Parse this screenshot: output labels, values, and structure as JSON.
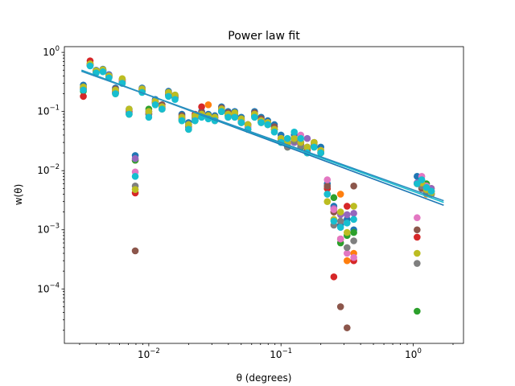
{
  "chart_data": {
    "type": "scatter",
    "title": "Power law fit",
    "xlabel": "θ (degrees)",
    "ylabel": "w(θ)",
    "xscale": "log",
    "yscale": "log",
    "xlim": [
      0.0023,
      2.4
    ],
    "ylim": [
      1.2e-05,
      1.25
    ],
    "grid": false,
    "legend": "none",
    "x_tick_values": [
      0.01,
      0.1,
      1
    ],
    "x_tick_labels": [
      "10",
      "10",
      "10"
    ],
    "x_tick_exponents": [
      "−2",
      "−1",
      "0"
    ],
    "y_tick_values": [
      0.0001,
      0.001,
      0.01,
      0.1,
      1
    ],
    "y_tick_labels": [
      "10",
      "10",
      "10",
      "10",
      "10"
    ],
    "y_tick_exponents": [
      "−4",
      "−3",
      "−2",
      "−1",
      "0"
    ],
    "palette": [
      "#1f77b4",
      "#ff7f0e",
      "#2ca02c",
      "#d62728",
      "#9467bd",
      "#8c564b",
      "#e377c2",
      "#7f7f7f",
      "#bcbd22",
      "#17becf"
    ],
    "theta": [
      0.0032,
      0.0036,
      0.004,
      0.0045,
      0.005,
      0.0056,
      0.0063,
      0.0071,
      0.0079,
      0.0089,
      0.01,
      0.0112,
      0.0126,
      0.0141,
      0.0158,
      0.0178,
      0.02,
      0.0224,
      0.0251,
      0.0282,
      0.0316,
      0.0355,
      0.0398,
      0.0447,
      0.0501,
      0.0562,
      0.0631,
      0.0708,
      0.0794,
      0.0891,
      0.1,
      0.112,
      0.126,
      0.141,
      0.158,
      0.178,
      0.2,
      0.224,
      0.251,
      0.282,
      0.316,
      0.355,
      1.07,
      1.16,
      1.26,
      1.37
    ],
    "series": [
      {
        "values": [
          0.28,
          0.62,
          0.5,
          0.52,
          0.42,
          0.25,
          0.35,
          0.11,
          0.018,
          0.25,
          0.1,
          0.16,
          0.13,
          0.22,
          0.19,
          0.09,
          0.065,
          0.085,
          0.1,
          0.09,
          0.085,
          0.12,
          0.1,
          0.1,
          0.08,
          0.06,
          0.1,
          0.08,
          0.07,
          0.06,
          0.04,
          0.03,
          0.04,
          0.03,
          0.025,
          0.03,
          0.025,
          0.006,
          0.0025,
          0.0012,
          0.0015,
          0.001,
          0.008,
          0.006,
          0.005,
          0.004
        ]
      },
      {
        "values": [
          0.24,
          0.65,
          0.48,
          0.5,
          0.4,
          0.22,
          0.33,
          0.1,
          0.015,
          0.24,
          0.09,
          0.15,
          0.12,
          0.2,
          0.18,
          0.08,
          0.06,
          0.08,
          0.09,
          0.13,
          0.08,
          0.11,
          0.09,
          0.09,
          0.07,
          0.06,
          0.09,
          0.07,
          0.06,
          0.05,
          0.035,
          0.028,
          0.035,
          0.03,
          0.022,
          0.028,
          0.02,
          0.005,
          0.002,
          0.004,
          0.0003,
          0.0004,
          0.006,
          0.005,
          0.004,
          0.005
        ]
      },
      {
        "values": [
          0.22,
          0.6,
          0.46,
          0.48,
          0.38,
          0.2,
          0.3,
          0.09,
          0.015,
          0.22,
          0.11,
          0.14,
          0.11,
          0.19,
          0.17,
          0.07,
          0.05,
          0.07,
          0.085,
          0.08,
          0.075,
          0.1,
          0.085,
          0.085,
          0.065,
          0.05,
          0.085,
          0.065,
          0.06,
          0.05,
          0.03,
          0.025,
          0.03,
          0.025,
          0.02,
          0.025,
          0.02,
          0.005,
          0.0035,
          0.0006,
          0.0008,
          0.0009,
          4.2e-05,
          0.0065,
          0.006,
          0.0045
        ]
      },
      {
        "values": [
          0.18,
          0.72,
          0.47,
          0.49,
          0.39,
          0.21,
          0.32,
          0.1,
          0.0042,
          0.23,
          0.095,
          0.14,
          0.115,
          0.2,
          0.18,
          0.075,
          0.055,
          0.09,
          0.12,
          0.085,
          0.08,
          0.11,
          0.09,
          0.09,
          0.07,
          0.055,
          0.09,
          0.07,
          0.065,
          0.055,
          0.035,
          0.026,
          0.034,
          0.028,
          0.022,
          0.026,
          0.021,
          0.005,
          0.00016,
          0.0007,
          0.0025,
          0.0003,
          0.00075,
          0.006,
          0.0048,
          0.004
        ]
      },
      {
        "values": [
          0.25,
          0.63,
          0.49,
          0.51,
          0.41,
          0.23,
          0.34,
          0.105,
          0.016,
          0.23,
          0.1,
          0.15,
          0.12,
          0.21,
          0.18,
          0.08,
          0.06,
          0.08,
          0.09,
          0.085,
          0.08,
          0.11,
          0.09,
          0.09,
          0.075,
          0.06,
          0.09,
          0.07,
          0.065,
          0.05,
          0.035,
          0.028,
          0.03,
          0.03,
          0.035,
          0.028,
          0.022,
          0.0055,
          0.0023,
          0.0018,
          0.0018,
          0.0019,
          0.0062,
          0.0052,
          0.0044,
          0.005
        ]
      },
      {
        "values": [
          0.26,
          0.61,
          0.48,
          0.5,
          0.4,
          0.24,
          0.34,
          0.1,
          0.00044,
          0.24,
          0.09,
          0.15,
          0.13,
          0.21,
          0.18,
          0.085,
          0.06,
          0.08,
          0.095,
          0.085,
          0.08,
          0.115,
          0.095,
          0.095,
          0.075,
          0.06,
          0.095,
          0.075,
          0.065,
          0.055,
          0.035,
          0.028,
          0.035,
          0.03,
          0.024,
          0.03,
          0.02,
          0.0055,
          0.002,
          5e-05,
          2.2e-05,
          0.0055,
          0.001,
          0.005,
          0.0042,
          0.0045
        ]
      },
      {
        "values": [
          0.25,
          0.62,
          0.47,
          0.49,
          0.39,
          0.22,
          0.33,
          0.1,
          0.0095,
          0.24,
          0.095,
          0.15,
          0.12,
          0.2,
          0.18,
          0.08,
          0.06,
          0.08,
          0.09,
          0.08,
          0.075,
          0.11,
          0.09,
          0.09,
          0.07,
          0.055,
          0.09,
          0.07,
          0.065,
          0.05,
          0.035,
          0.028,
          0.035,
          0.04,
          0.025,
          0.03,
          0.022,
          0.007,
          0.0022,
          0.0007,
          0.0004,
          0.00034,
          0.0016,
          0.008,
          0.0055,
          0.0045
        ]
      },
      {
        "values": [
          0.24,
          0.6,
          0.46,
          0.48,
          0.38,
          0.21,
          0.31,
          0.095,
          0.0055,
          0.22,
          0.09,
          0.14,
          0.11,
          0.19,
          0.17,
          0.075,
          0.055,
          0.075,
          0.085,
          0.08,
          0.07,
          0.1,
          0.085,
          0.085,
          0.065,
          0.05,
          0.085,
          0.065,
          0.06,
          0.05,
          0.032,
          0.025,
          0.032,
          0.026,
          0.02,
          0.026,
          0.02,
          0.004,
          0.0012,
          0.0014,
          0.0005,
          0.00065,
          0.00027,
          0.0055,
          0.0045,
          0.004
        ]
      },
      {
        "values": [
          0.26,
          0.64,
          0.49,
          0.51,
          0.4,
          0.23,
          0.36,
          0.11,
          0.0048,
          0.24,
          0.1,
          0.15,
          0.12,
          0.21,
          0.19,
          0.08,
          0.06,
          0.085,
          0.09,
          0.085,
          0.08,
          0.11,
          0.09,
          0.095,
          0.075,
          0.06,
          0.09,
          0.07,
          0.065,
          0.05,
          0.035,
          0.03,
          0.035,
          0.03,
          0.025,
          0.03,
          0.022,
          0.003,
          0.0015,
          0.002,
          0.0009,
          0.0025,
          0.0004,
          0.0062,
          0.0048,
          0.0042
        ]
      },
      {
        "values": [
          0.23,
          0.59,
          0.45,
          0.47,
          0.37,
          0.2,
          0.3,
          0.09,
          0.008,
          0.21,
          0.08,
          0.13,
          0.11,
          0.18,
          0.16,
          0.07,
          0.05,
          0.07,
          0.08,
          0.075,
          0.07,
          0.1,
          0.08,
          0.08,
          0.065,
          0.05,
          0.08,
          0.065,
          0.06,
          0.045,
          0.03,
          0.035,
          0.045,
          0.035,
          0.02,
          0.025,
          0.02,
          0.004,
          0.0014,
          0.0011,
          0.0013,
          0.0015,
          0.006,
          0.007,
          0.0052,
          0.0045
        ]
      }
    ],
    "fit_lines": [
      {
        "x": [
          0.0031,
          1.7
        ],
        "y": [
          0.5,
          0.0026
        ],
        "color": "#1f77b4"
      },
      {
        "x": [
          0.0031,
          1.7
        ],
        "y": [
          0.49,
          0.0029
        ],
        "color": "#17becf"
      },
      {
        "x": [
          0.0031,
          1.7
        ],
        "y": [
          0.48,
          0.0031
        ],
        "color": "#2b8cbe"
      }
    ]
  }
}
